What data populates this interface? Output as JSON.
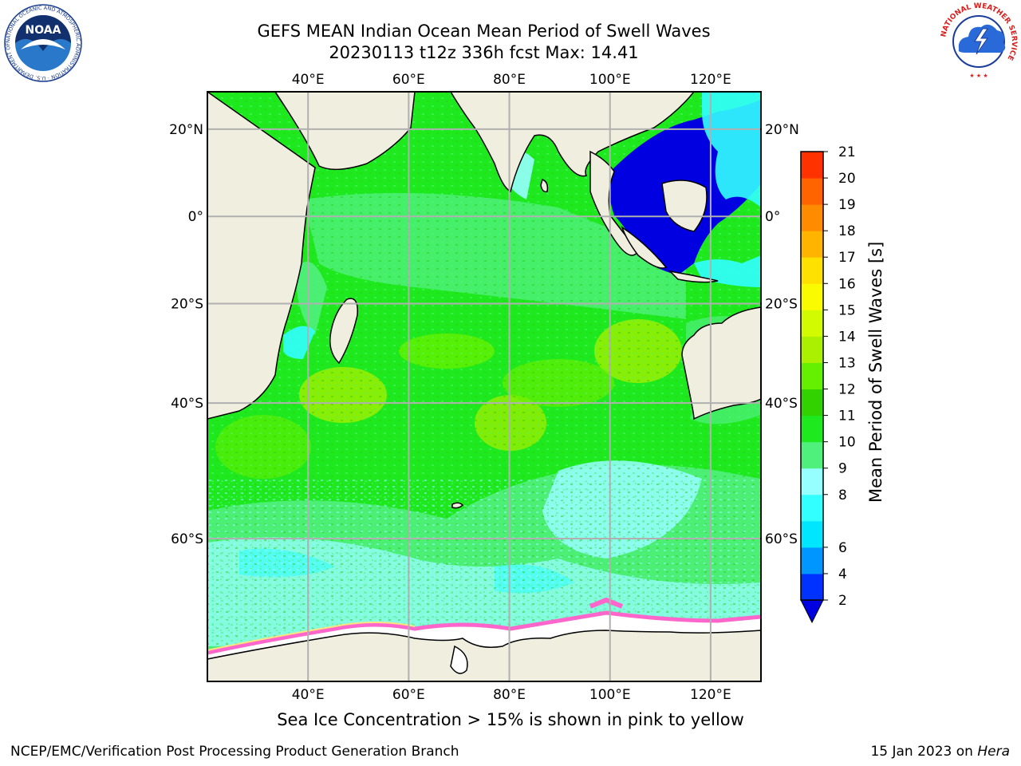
{
  "title": {
    "line1": "GEFS MEAN Indian Ocean Mean Period of Swell Waves",
    "line2": "20230113 t12z 336h fcst   Max: 14.41"
  },
  "map": {
    "lon_range": [
      20,
      130
    ],
    "lat_range": [
      -73,
      28
    ],
    "lon_ticks": [
      {
        "value": 40,
        "label": "40°E"
      },
      {
        "value": 60,
        "label": "60°E"
      },
      {
        "value": 80,
        "label": "80°E"
      },
      {
        "value": 100,
        "label": "100°E"
      },
      {
        "value": 120,
        "label": "120°E"
      }
    ],
    "lat_ticks": [
      {
        "value": 20,
        "label": "20°N"
      },
      {
        "value": 0,
        "label": "0°"
      },
      {
        "value": -20,
        "label": "20°S"
      },
      {
        "value": -40,
        "label": "40°S"
      },
      {
        "value": -60,
        "label": "60°S"
      }
    ],
    "grid": true,
    "land_color": "#efeedf",
    "ocean_color": "#1ee81e"
  },
  "colorbar": {
    "title": "Mean Period of Swell Waves [s]",
    "levels": [
      "2",
      "4",
      "6",
      "7",
      "8",
      "9",
      "10",
      "11",
      "12",
      "13",
      "14",
      "15",
      "16",
      "17",
      "18",
      "19",
      "20",
      "21"
    ],
    "colors": [
      "#0032ff",
      "#0096ff",
      "#00e6ff",
      "#32ffff",
      "#96ffff",
      "#50f07d",
      "#1ee81e",
      "#32d200",
      "#64f000",
      "#aaf000",
      "#d2fa00",
      "#fafa00",
      "#ffe100",
      "#ffb400",
      "#ff8c00",
      "#ff6400",
      "#ff3200",
      "#ff0000"
    ],
    "extend_color": "#0000e0"
  },
  "caption": "Sea Ice Concentration > 15% is shown in pink to yellow",
  "footer": {
    "left": "NCEP/EMC/Verification Post Processing Product Generation Branch",
    "right_date": "15 Jan 2023 on ",
    "right_host": "Hera"
  },
  "logos": {
    "noaa_text": "NOAA",
    "noaa_ring": "NATIONAL OCEANIC AND ATMOSPHERIC ADMINISTRATION · U.S. DEPARTMENT OF COMMERCE",
    "nws_ring": "NATIONAL WEATHER SERVICE"
  }
}
